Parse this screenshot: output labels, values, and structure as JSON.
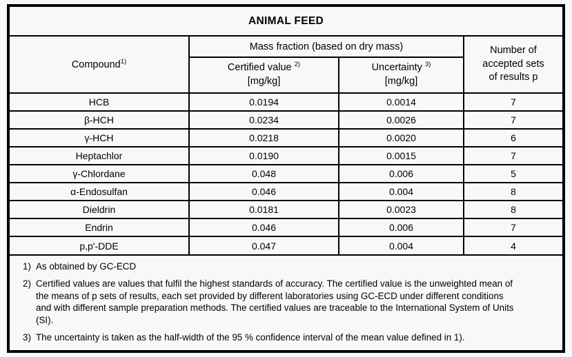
{
  "title": "ANIMAL FEED",
  "table": {
    "headers": {
      "compound": {
        "label": "Compound",
        "sup": "1)"
      },
      "mass_fraction_group": "Mass fraction (based on dry mass)",
      "certified": {
        "label": "Certified value",
        "sup": "2)",
        "unit": "[mg/kg]"
      },
      "uncertainty": {
        "label": "Uncertainty",
        "sup": "3)",
        "unit": "[mg/kg]"
      },
      "accepted_sets": "Number of\naccepted sets\nof results p"
    },
    "rows": [
      {
        "compound": "HCB",
        "certified": "0.0194",
        "uncertainty": "0.0014",
        "p": "7"
      },
      {
        "compound": "β-HCH",
        "certified": "0.0234",
        "uncertainty": "0.0026",
        "p": "7"
      },
      {
        "compound": "γ-HCH",
        "certified": "0.0218",
        "uncertainty": "0.0020",
        "p": "6"
      },
      {
        "compound": "Heptachlor",
        "certified": "0.0190",
        "uncertainty": "0.0015",
        "p": "7"
      },
      {
        "compound": "γ-Chlordane",
        "certified": "0.048",
        "uncertainty": "0.006",
        "p": "5"
      },
      {
        "compound": "α-Endosulfan",
        "certified": "0.046",
        "uncertainty": "0.004",
        "p": "8"
      },
      {
        "compound": "Dieldrin",
        "certified": "0.0181",
        "uncertainty": "0.0023",
        "p": "8"
      },
      {
        "compound": "Endrin",
        "certified": "0.046",
        "uncertainty": "0.006",
        "p": "7"
      },
      {
        "compound": "p,p'-DDE",
        "certified": "0.047",
        "uncertainty": "0.004",
        "p": "4"
      }
    ]
  },
  "footnotes": [
    {
      "num": "1)",
      "text": "As obtained by GC-ECD"
    },
    {
      "num": "2)",
      "text": "Certified values are values that fulfil the highest standards of accuracy. The certified value is the unweighted mean of the means of p sets of results, each set provided by different laboratories using GC-ECD under different conditions and with different sample preparation methods. The certified values are traceable to the International System of Units (SI)."
    },
    {
      "num": "3)",
      "text": "The uncertainty is taken as the half-width of the 95 % confidence interval of the mean value defined in 1)."
    }
  ],
  "colors": {
    "border": "#000000",
    "text": "#000000",
    "background": "#f8f8f8"
  }
}
